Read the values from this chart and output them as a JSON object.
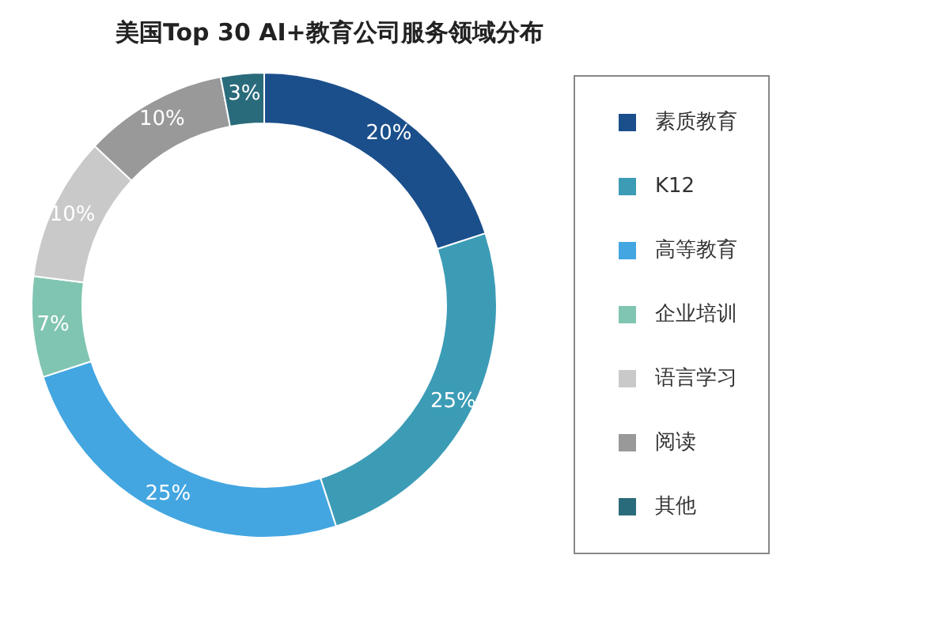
{
  "chart_data": {
    "type": "donut",
    "title": "美国Top 30 AI+教育公司服务领域分布",
    "categories": [
      "素质教育",
      "K12",
      "高等教育",
      "企业培训",
      "语言学习",
      "阅读",
      "其他"
    ],
    "values": [
      20,
      25,
      25,
      7,
      10,
      10,
      3
    ],
    "colors": [
      "#1b4f8c",
      "#3c9cb6",
      "#43a6e1",
      "#80c5b1",
      "#c9c9c9",
      "#999999",
      "#2a6b7b"
    ],
    "value_labels": [
      "20%",
      "25%",
      "25%",
      "7%",
      "10%",
      "10%",
      "3%"
    ],
    "legend": "right"
  }
}
